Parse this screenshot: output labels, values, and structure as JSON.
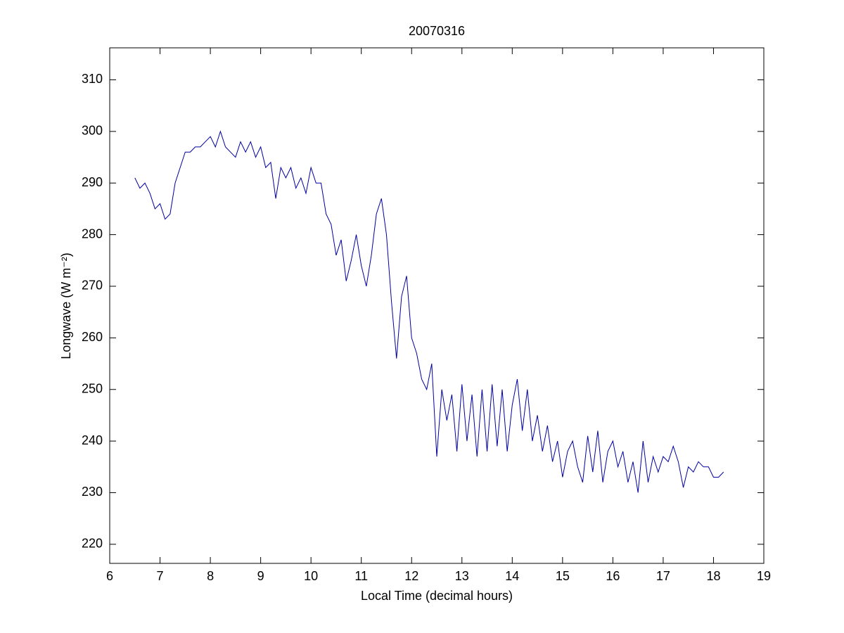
{
  "chart_data": {
    "type": "line",
    "title": "20070316",
    "xlabel": "Local Time (decimal hours)",
    "ylabel": "Longwave (W m⁻²)",
    "xlim": [
      6,
      19
    ],
    "xticks": [
      6,
      7,
      8,
      9,
      10,
      11,
      12,
      13,
      14,
      15,
      16,
      17,
      18,
      19
    ],
    "ylim": [
      216.3,
      316.2
    ],
    "yticks": [
      220,
      230,
      240,
      250,
      260,
      270,
      280,
      290,
      300,
      310
    ],
    "grid": false,
    "x": [
      6.5,
      6.6,
      6.7,
      6.8,
      6.9,
      7.0,
      7.1,
      7.2,
      7.3,
      7.4,
      7.5,
      7.6,
      7.7,
      7.8,
      7.9,
      8.0,
      8.1,
      8.2,
      8.3,
      8.4,
      8.5,
      8.6,
      8.7,
      8.8,
      8.9,
      9.0,
      9.1,
      9.2,
      9.3,
      9.4,
      9.5,
      9.6,
      9.7,
      9.8,
      9.9,
      10.0,
      10.1,
      10.2,
      10.3,
      10.4,
      10.5,
      10.6,
      10.7,
      10.8,
      10.9,
      11.0,
      11.1,
      11.2,
      11.3,
      11.4,
      11.5,
      11.6,
      11.7,
      11.8,
      11.9,
      12.0,
      12.1,
      12.2,
      12.3,
      12.4,
      12.5,
      12.6,
      12.7,
      12.8,
      12.9,
      13.0,
      13.1,
      13.2,
      13.3,
      13.4,
      13.5,
      13.6,
      13.7,
      13.8,
      13.9,
      14.0,
      14.1,
      14.2,
      14.3,
      14.4,
      14.5,
      14.6,
      14.7,
      14.8,
      14.9,
      15.0,
      15.1,
      15.2,
      15.3,
      15.4,
      15.5,
      15.6,
      15.7,
      15.8,
      15.9,
      16.0,
      16.1,
      16.2,
      16.3,
      16.4,
      16.5,
      16.6,
      16.7,
      16.8,
      16.9,
      17.0,
      17.1,
      17.2,
      17.3,
      17.4,
      17.5,
      17.6,
      17.7,
      17.8,
      17.9,
      18.0,
      18.1,
      18.2
    ],
    "series": [
      {
        "color": "#0000a0",
        "values": [
          291,
          289,
          290,
          288,
          285,
          286,
          283,
          284,
          290,
          293,
          296,
          296,
          297,
          297,
          298,
          299,
          297,
          300,
          297,
          296,
          295,
          298,
          296,
          298,
          295,
          297,
          293,
          294,
          287,
          293,
          291,
          293,
          289,
          291,
          288,
          293,
          290,
          290,
          284,
          282,
          276,
          279,
          271,
          275,
          280,
          274,
          270,
          276,
          284,
          287,
          280,
          267,
          256,
          268,
          272,
          260,
          257,
          252,
          250,
          255,
          237,
          250,
          244,
          249,
          238,
          251,
          240,
          249,
          237,
          250,
          238,
          251,
          239,
          250,
          238,
          247,
          252,
          242,
          250,
          240,
          245,
          238,
          243,
          236,
          240,
          233,
          238,
          240,
          235,
          232,
          241,
          234,
          242,
          232,
          238,
          240,
          235,
          238,
          232,
          236,
          230,
          240,
          232,
          237,
          234,
          237,
          236,
          239,
          236,
          231,
          235,
          234,
          236,
          235,
          235,
          233,
          233,
          234
        ]
      }
    ]
  }
}
